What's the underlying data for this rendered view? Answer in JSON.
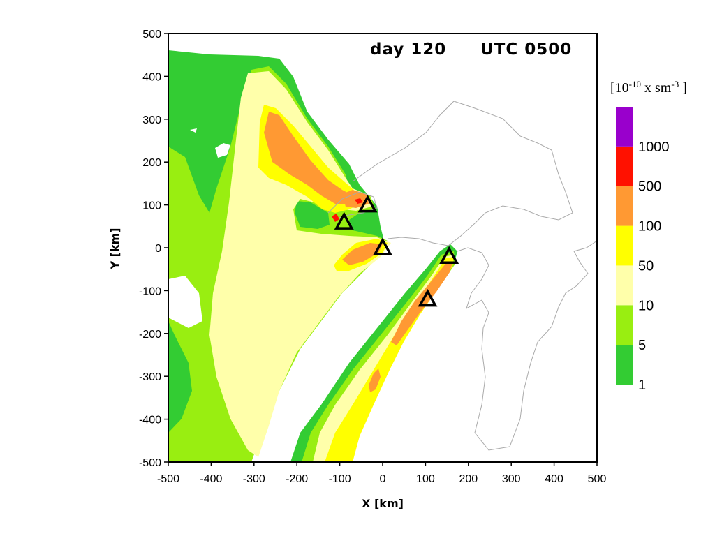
{
  "chart_data": {
    "type": "heatmap",
    "title": "",
    "annotation_day": "day 120",
    "annotation_utc": "UTC 0500",
    "xlabel": "X [km]",
    "ylabel": "Y [km]",
    "xlim": [
      -500,
      500
    ],
    "ylim": [
      -500,
      500
    ],
    "x_ticks": [
      -500,
      -400,
      -300,
      -200,
      -100,
      0,
      100,
      200,
      300,
      400,
      500
    ],
    "y_ticks": [
      -500,
      -400,
      -300,
      -200,
      -100,
      0,
      100,
      200,
      300,
      400,
      500
    ],
    "x_tick_labels": [
      "-500",
      "-400",
      "-300",
      "-200",
      "-100",
      "0",
      "100",
      "200",
      "300",
      "400",
      "500"
    ],
    "y_tick_labels": [
      "-500",
      "-400",
      "-300",
      "-200",
      "-100",
      "0",
      "100",
      "200",
      "300",
      "400",
      "500"
    ],
    "legend": {
      "unit": {
        "base": "[10",
        "exponent": "-10",
        "mid": " x sm",
        "exponent2": "-3",
        "end": " ]"
      },
      "placement": "right",
      "levels": [
        "1",
        "5",
        "10",
        "50",
        "100",
        "500",
        "1000"
      ],
      "colors": [
        "#33cc33",
        "#99ee11",
        "#ffffaa",
        "#ffff00",
        "#ff9933",
        "#ff1100",
        "#9900cc"
      ]
    },
    "sources": [
      {
        "x": -35,
        "y": 100
      },
      {
        "x": -90,
        "y": 60
      },
      {
        "x": 0,
        "y": 0
      },
      {
        "x": 155,
        "y": -20
      },
      {
        "x": 105,
        "y": -120
      }
    ]
  }
}
